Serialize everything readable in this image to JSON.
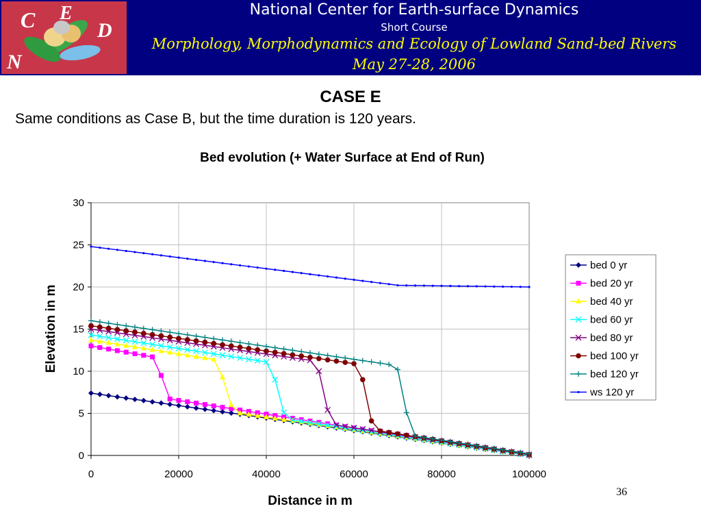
{
  "header": {
    "org": "National Center for Earth-surface Dynamics",
    "course": "Short Course",
    "title": "Morphology, Morphodynamics and Ecology of Lowland Sand-bed Rivers",
    "date": "May 27-28, 2006",
    "logo_letters": [
      "C",
      "E",
      "D",
      "N"
    ]
  },
  "slide": {
    "title": "CASE E",
    "subtitle": "Same conditions as Case B, but the time duration is 120 years.",
    "page_number": "36"
  },
  "chart_data": {
    "type": "line",
    "title": "Bed evolution (+ Water Surface at End of Run)",
    "xlabel": "Distance in m",
    "ylabel": "Elevation in m",
    "xlim": [
      0,
      100000
    ],
    "ylim": [
      0,
      30
    ],
    "xticks": [
      "0",
      "20000",
      "40000",
      "60000",
      "80000",
      "100000"
    ],
    "yticks": [
      "0",
      "5",
      "10",
      "15",
      "20",
      "25",
      "30"
    ],
    "grid": true,
    "legend_position": "right",
    "series": [
      {
        "name": "bed 0 yr",
        "color": "#000080",
        "marker": "diamond",
        "x": [
          0,
          100000
        ],
        "y": [
          7.4,
          0.0
        ]
      },
      {
        "name": "bed 20 yr",
        "color": "#ff00ff",
        "marker": "square",
        "x": [
          0,
          14000,
          16000,
          18000,
          100000
        ],
        "y": [
          13.0,
          11.7,
          9.5,
          6.7,
          0.0
        ]
      },
      {
        "name": "bed 40 yr",
        "color": "#ffff00",
        "marker": "triangle",
        "x": [
          0,
          28000,
          30000,
          32000,
          34000,
          100000
        ],
        "y": [
          13.7,
          11.4,
          9.3,
          6.0,
          5.0,
          0.0
        ]
      },
      {
        "name": "bed 60 yr",
        "color": "#00ffff",
        "marker": "x",
        "x": [
          0,
          40000,
          42000,
          44000,
          46000,
          100000
        ],
        "y": [
          14.3,
          11.1,
          9.0,
          5.1,
          4.2,
          0.0
        ]
      },
      {
        "name": "bed 80 yr",
        "color": "#800080",
        "marker": "x",
        "x": [
          0,
          50000,
          52000,
          54000,
          56000,
          100000
        ],
        "y": [
          15.0,
          11.3,
          10.0,
          5.4,
          3.6,
          0.1
        ]
      },
      {
        "name": "bed 100 yr",
        "color": "#800000",
        "marker": "circle",
        "x": [
          0,
          60000,
          62000,
          64000,
          66000,
          100000
        ],
        "y": [
          15.4,
          10.9,
          9.0,
          4.1,
          2.9,
          0.1
        ]
      },
      {
        "name": "bed 120 yr",
        "color": "#008080",
        "marker": "plus",
        "x": [
          0,
          68000,
          70000,
          72000,
          74000,
          100000
        ],
        "y": [
          16.0,
          10.8,
          10.2,
          5.1,
          2.3,
          0.2
        ]
      },
      {
        "name": "ws 120 yr",
        "color": "#0000ff",
        "marker": "dot",
        "x": [
          0,
          70000,
          100000
        ],
        "y": [
          24.8,
          20.2,
          20.0
        ]
      }
    ]
  }
}
